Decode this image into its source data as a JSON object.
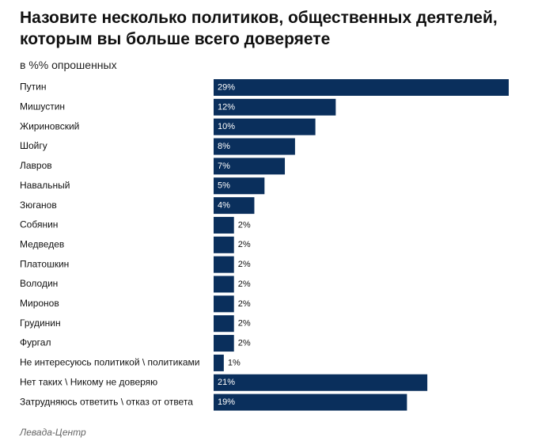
{
  "chart_data": {
    "type": "bar",
    "orientation": "horizontal",
    "title": "Назовите несколько политиков, общественных деятелей, которым вы больше всего доверяете",
    "subtitle": "в %% опрошенных",
    "categories": [
      "Путин",
      "Мишустин",
      "Жириновский",
      "Шойгу",
      "Лавров",
      "Навальный",
      "Зюганов",
      "Собянин",
      "Медведев",
      "Платошкин",
      "Володин",
      "Миронов",
      "Грудинин",
      "Фургал",
      "Не интересуюсь политикой \\ политиками",
      "Нет таких \\ Никому не доверяю",
      "Затрудняюсь ответить \\ отказ от ответа"
    ],
    "values": [
      29,
      12,
      10,
      8,
      7,
      5,
      4,
      2,
      2,
      2,
      2,
      2,
      2,
      2,
      1,
      21,
      19
    ],
    "value_labels": [
      "29%",
      "12%",
      "10%",
      "8%",
      "7%",
      "5%",
      "4%",
      "2%",
      "2%",
      "2%",
      "2%",
      "2%",
      "2%",
      "2%",
      "1%",
      "21%",
      "19%"
    ],
    "xlim": [
      0,
      29
    ],
    "grid": false,
    "bar_color": "#0a2f5c"
  },
  "source": "Левада-Центр"
}
